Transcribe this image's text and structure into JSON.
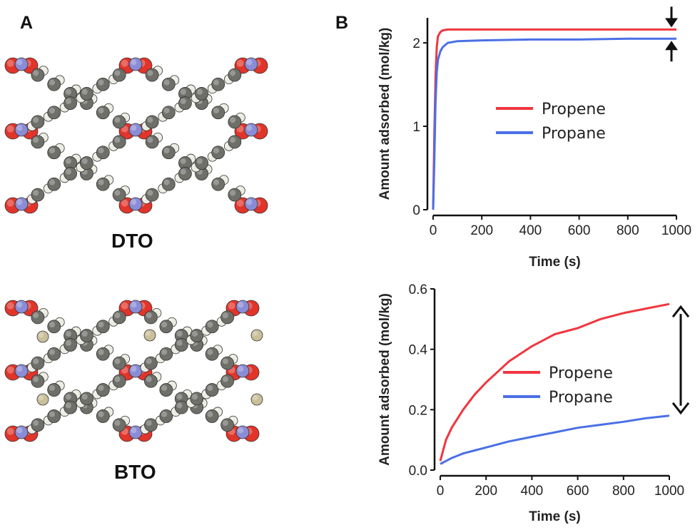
{
  "panels": {
    "a": "A",
    "b": "B"
  },
  "structures": [
    {
      "name": "DTO"
    },
    {
      "name": "BTO"
    }
  ],
  "colors": {
    "propene": "#f0363f",
    "propane": "#4b6fe6",
    "carbon": "#6f6f6a",
    "hydrogen": "#ecece2",
    "oxygen": "#e1342a",
    "nitrogen": "#8a8cd6",
    "boron": "#c9bf9a"
  },
  "chart_data": [
    {
      "type": "line",
      "xlabel": "Time (s)",
      "ylabel": "Amount adsorbed (mol/kg)",
      "xlim": [
        0,
        1000
      ],
      "ylim": [
        0,
        2.3
      ],
      "xticks": [
        0,
        200,
        400,
        600,
        800,
        1000
      ],
      "yticks": [
        0,
        1,
        2
      ],
      "legend_position": "center",
      "annotation": "arrows pointing at the gap between curves at 1000 s",
      "series": [
        {
          "name": "Propene",
          "color": "#f0363f",
          "x": [
            0,
            5,
            10,
            15,
            20,
            30,
            40,
            60,
            100,
            200,
            400,
            600,
            800,
            1000
          ],
          "y": [
            0,
            0.9,
            1.6,
            1.95,
            2.08,
            2.13,
            2.15,
            2.16,
            2.16,
            2.16,
            2.16,
            2.16,
            2.16,
            2.16
          ]
        },
        {
          "name": "Propane",
          "color": "#4b6fe6",
          "x": [
            0,
            5,
            10,
            15,
            20,
            30,
            40,
            60,
            100,
            200,
            400,
            600,
            800,
            1000
          ],
          "y": [
            0,
            0.6,
            1.3,
            1.65,
            1.8,
            1.9,
            1.95,
            2.0,
            2.02,
            2.03,
            2.04,
            2.04,
            2.05,
            2.05
          ]
        }
      ]
    },
    {
      "type": "line",
      "xlabel": "Time (s)",
      "ylabel": "Amount adsorbed (mol/kg)",
      "xlim": [
        0,
        1000
      ],
      "ylim": [
        0,
        0.6
      ],
      "xticks": [
        0,
        200,
        400,
        600,
        800,
        1000
      ],
      "yticks": [
        "0.0",
        "0.2",
        "0.4",
        "0.6"
      ],
      "legend_position": "center-right",
      "annotation": "double-headed arrow spanning the gap between curves at 1000 s",
      "series": [
        {
          "name": "Propene",
          "color": "#f0363f",
          "x": [
            0,
            25,
            50,
            100,
            150,
            200,
            300,
            400,
            500,
            600,
            700,
            800,
            900,
            1000
          ],
          "y": [
            0.03,
            0.1,
            0.14,
            0.2,
            0.25,
            0.29,
            0.36,
            0.41,
            0.45,
            0.47,
            0.5,
            0.52,
            0.535,
            0.55
          ]
        },
        {
          "name": "Propane",
          "color": "#4b6fe6",
          "x": [
            0,
            25,
            50,
            100,
            150,
            200,
            300,
            400,
            500,
            600,
            700,
            800,
            900,
            1000
          ],
          "y": [
            0.02,
            0.03,
            0.04,
            0.055,
            0.065,
            0.075,
            0.095,
            0.11,
            0.125,
            0.14,
            0.15,
            0.16,
            0.172,
            0.18
          ]
        }
      ]
    }
  ]
}
